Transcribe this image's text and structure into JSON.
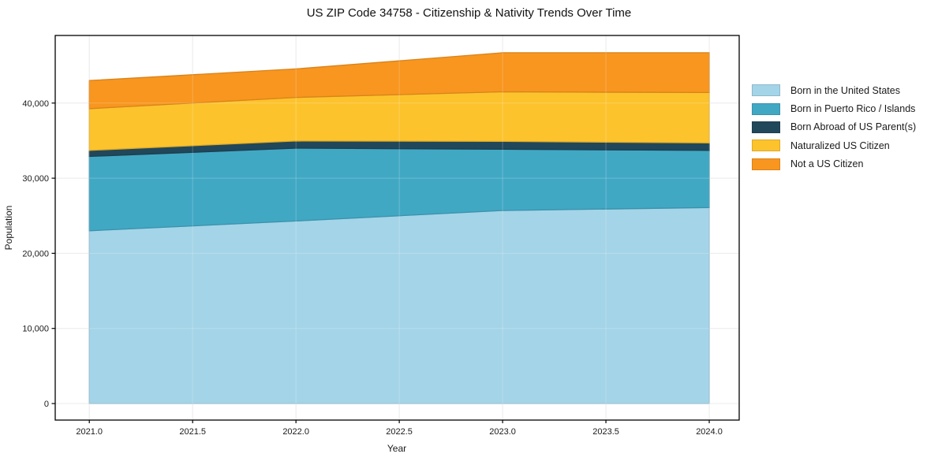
{
  "chart_data": {
    "type": "area",
    "stacked": true,
    "title": "US ZIP Code 34758 - Citizenship & Nativity Trends Over Time",
    "xlabel": "Year",
    "ylabel": "Population",
    "x": [
      2021,
      2022,
      2023,
      2024
    ],
    "series": [
      {
        "name": "Born in the United States",
        "color": "#a4d4e8",
        "values": [
          23000,
          24300,
          25700,
          26100
        ]
      },
      {
        "name": "Born in Puerto Rico / Islands",
        "color": "#41a8c4",
        "values": [
          9900,
          9700,
          8150,
          7600
        ]
      },
      {
        "name": "Born Abroad of US Parent(s)",
        "color": "#21475a",
        "values": [
          800,
          950,
          1050,
          1000
        ]
      },
      {
        "name": "Naturalized US Citizen",
        "color": "#fdc32d",
        "values": [
          5550,
          5800,
          6600,
          6700
        ]
      },
      {
        "name": "Not a US Citizen",
        "color": "#f8961f",
        "values": [
          3750,
          3800,
          5200,
          5300
        ]
      }
    ],
    "x_ticks": [
      2021.0,
      2021.5,
      2022.0,
      2022.5,
      2023.0,
      2023.5,
      2024.0
    ],
    "x_tick_labels": [
      "2021.0",
      "2021.5",
      "2022.0",
      "2022.5",
      "2023.0",
      "2023.5",
      "2024.0"
    ],
    "y_ticks": [
      0,
      10000,
      20000,
      30000,
      40000
    ],
    "y_tick_labels": [
      "0",
      "10,000",
      "20,000",
      "30,000",
      "40,000"
    ],
    "xlim": [
      2020.835,
      2024.145
    ],
    "ylim": [
      -2200,
      49000
    ],
    "grid": true,
    "legend_position": "right-outside",
    "colors": {
      "gridline": "#e6e6e6",
      "spine": "#000000",
      "background": "#ffffff"
    }
  }
}
